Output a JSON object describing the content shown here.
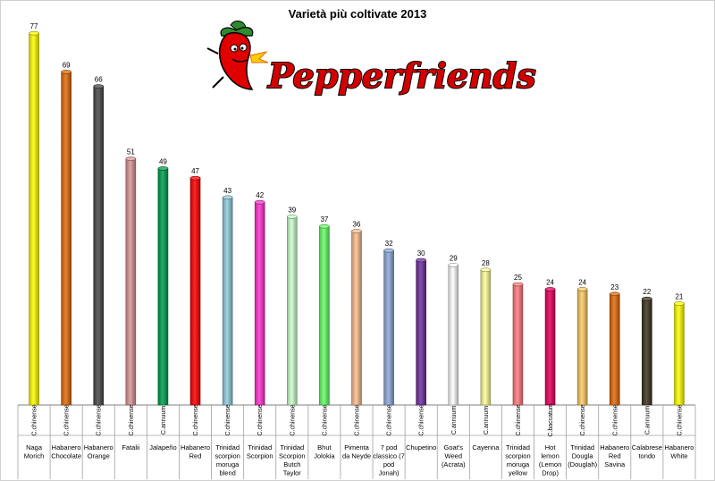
{
  "chart_data": {
    "type": "bar",
    "title": "Varietà più coltivate 2013",
    "xlabel": "",
    "ylabel": "",
    "ylim": [
      0,
      80
    ],
    "grid": false,
    "legend": "none",
    "categories": [
      {
        "name": [
          "Naga",
          "Morich"
        ],
        "species": "C.chinense",
        "color": "#ffff00"
      },
      {
        "name": [
          "Habanero",
          "Chocolate"
        ],
        "species": "C.chinense",
        "color": "#e36c0a"
      },
      {
        "name": [
          "Habanero",
          "Orange"
        ],
        "species": "C.chinense",
        "color": "#4a4a4a"
      },
      {
        "name": [
          "Fatalii"
        ],
        "species": "C.chinense",
        "color": "#d99594"
      },
      {
        "name": [
          "Jalapeño"
        ],
        "species": "C.annuum",
        "color": "#00a050"
      },
      {
        "name": [
          "Habanero",
          "Red"
        ],
        "species": "C.chinense",
        "color": "#ff0000"
      },
      {
        "name": [
          "Trinidad",
          "scorpion",
          "moruga",
          "blend"
        ],
        "species": "C.chinense",
        "color": "#92cddc"
      },
      {
        "name": [
          "Trinidad",
          "Scorpion"
        ],
        "species": "C.chinense",
        "color": "#ff33cc"
      },
      {
        "name": [
          "Trinidad",
          "Scorpion",
          "Butch",
          "Taylor"
        ],
        "species": "C.chinense",
        "color": "#ccffcc"
      },
      {
        "name": [
          "Bhut",
          "Jolokia"
        ],
        "species": "C.chinense",
        "color": "#66ff66"
      },
      {
        "name": [
          "Pimenta",
          "da Neyde"
        ],
        "species": "C.chinense",
        "color": "#fabf8f"
      },
      {
        "name": [
          "7 pod",
          "classico (7",
          "pod",
          "Jonah)"
        ],
        "species": "C.chinense",
        "color": "#8eaadb"
      },
      {
        "name": [
          "Chupetino"
        ],
        "species": "C.chinense",
        "color": "#7030a0"
      },
      {
        "name": [
          "Goat's",
          "Weed",
          "(Acrata)"
        ],
        "species": "C.annuum",
        "color": "#ffffff"
      },
      {
        "name": [
          "Cayenna"
        ],
        "species": "C.annuum",
        "color": "#ffff99"
      },
      {
        "name": [
          "Trinidad",
          "scorpion",
          "moruga",
          "yellow"
        ],
        "species": "C.chinense",
        "color": "#ff7c80"
      },
      {
        "name": [
          "Hot",
          "lemon",
          "(Lemon",
          "Drop)"
        ],
        "species": "C.baccatum",
        "color": "#e6005c"
      },
      {
        "name": [
          "Trinidad",
          "Dougla",
          "(Douglah)"
        ],
        "species": "C.chinense",
        "color": "#ffcc66"
      },
      {
        "name": [
          "Habanero",
          "Red",
          "Savina"
        ],
        "species": "C.chinense",
        "color": "#e36c0a"
      },
      {
        "name": [
          "Calabrese",
          "tondo"
        ],
        "species": "C.annuum",
        "color": "#3d3520"
      },
      {
        "name": [
          "Habanero",
          "White"
        ],
        "species": "C.chinense",
        "color": "#ffff00"
      }
    ],
    "values": [
      77,
      69,
      66,
      51,
      49,
      47,
      43,
      42,
      39,
      37,
      36,
      32,
      30,
      29,
      28,
      25,
      24,
      24,
      23,
      22,
      21
    ]
  },
  "logo": {
    "text": "Pepperfriends",
    "icon": "chili-pepper-mascot-icon"
  }
}
